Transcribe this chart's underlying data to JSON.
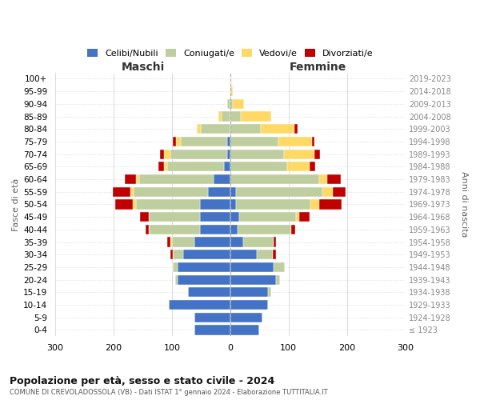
{
  "age_groups": [
    "100+",
    "95-99",
    "90-94",
    "85-89",
    "80-84",
    "75-79",
    "70-74",
    "65-69",
    "60-64",
    "55-59",
    "50-54",
    "45-49",
    "40-44",
    "35-39",
    "30-34",
    "25-29",
    "20-24",
    "15-19",
    "10-14",
    "5-9",
    "0-4"
  ],
  "birth_years": [
    "≤ 1923",
    "1924-1928",
    "1929-1933",
    "1934-1938",
    "1939-1943",
    "1944-1948",
    "1949-1953",
    "1954-1958",
    "1959-1963",
    "1964-1968",
    "1969-1973",
    "1974-1978",
    "1979-1983",
    "1984-1988",
    "1989-1993",
    "1994-1998",
    "1999-2003",
    "2004-2008",
    "2009-2013",
    "2014-2018",
    "2019-2023"
  ],
  "maschi_celibi": [
    0,
    0,
    0,
    0,
    0,
    5,
    5,
    10,
    28,
    38,
    52,
    52,
    52,
    62,
    80,
    90,
    90,
    72,
    105,
    62,
    62
  ],
  "maschi_coniugati": [
    0,
    0,
    5,
    15,
    50,
    80,
    98,
    98,
    128,
    128,
    110,
    88,
    88,
    38,
    18,
    8,
    5,
    0,
    0,
    0,
    0
  ],
  "maschi_vedovi": [
    0,
    0,
    0,
    5,
    8,
    8,
    10,
    5,
    5,
    5,
    5,
    0,
    0,
    3,
    0,
    0,
    0,
    0,
    0,
    0,
    0
  ],
  "maschi_divorziati": [
    0,
    0,
    0,
    0,
    0,
    5,
    8,
    10,
    20,
    30,
    30,
    15,
    5,
    5,
    5,
    0,
    0,
    0,
    0,
    0,
    0
  ],
  "femmine_nubili": [
    0,
    0,
    0,
    0,
    0,
    0,
    0,
    0,
    0,
    10,
    10,
    15,
    12,
    22,
    45,
    75,
    78,
    65,
    65,
    55,
    50
  ],
  "femmine_coniugate": [
    0,
    0,
    5,
    18,
    52,
    82,
    92,
    98,
    152,
    148,
    128,
    98,
    92,
    52,
    28,
    18,
    8,
    5,
    0,
    0,
    0
  ],
  "femmine_vedove": [
    0,
    5,
    18,
    52,
    58,
    58,
    52,
    38,
    15,
    18,
    15,
    5,
    0,
    0,
    0,
    0,
    0,
    0,
    0,
    0,
    0
  ],
  "femmine_divorziate": [
    0,
    0,
    0,
    0,
    5,
    5,
    10,
    10,
    22,
    22,
    38,
    18,
    8,
    5,
    5,
    0,
    0,
    0,
    0,
    0,
    0
  ],
  "color_celibi": "#4472C4",
  "color_coniugati": "#BFCE9E",
  "color_vedovi": "#FFD966",
  "color_divorziati": "#C00000",
  "xlim": 300,
  "xticks": [
    -300,
    -200,
    -100,
    0,
    100,
    200,
    300
  ],
  "title": "Popolazione per età, sesso e stato civile - 2024",
  "subtitle": "COMUNE DI CREVOLADOSSOLA (VB) - Dati ISTAT 1° gennaio 2024 - Elaborazione TUTTITALIA.IT",
  "ylabel_left": "Fasce di età",
  "ylabel_right": "Anni di nascita",
  "label_maschi": "Maschi",
  "label_femmine": "Femmine",
  "legend_labels": [
    "Celibi/Nubili",
    "Coniugati/e",
    "Vedovi/e",
    "Divorziati/e"
  ]
}
